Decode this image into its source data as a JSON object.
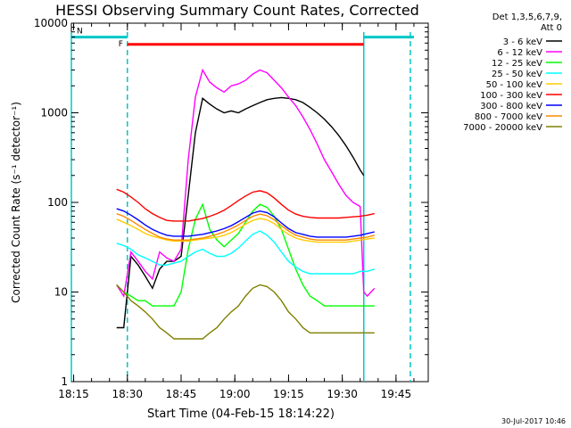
{
  "chart_data": {
    "type": "line",
    "title": "HESSI Observing Summary Count Rates, Corrected",
    "xlabel": "Start Time (04-Feb-15 18:14:22)",
    "ylabel": "Corrected Count Rate (s⁻¹ detector⁻¹)",
    "y_scale": "log",
    "ylim": [
      1,
      10000
    ],
    "xlim": [
      "18:14:22",
      "19:54"
    ],
    "grid": false,
    "legend_placement": "right, outside plot",
    "legend_header": [
      "Det 1,3,5,6,7,9,",
      "Att 0"
    ],
    "x_ticks": [
      "18:15",
      "18:30",
      "18:45",
      "19:00",
      "19:15",
      "19:30",
      "19:45"
    ],
    "y_ticks": [
      "1",
      "10",
      "100",
      "1000",
      "10000"
    ],
    "footer_date": "30-Jul-2017 10:46",
    "flags": [
      {
        "label": "F",
        "color": "#ff0000",
        "value": 5800,
        "start": "18:30",
        "end": "19:36"
      },
      {
        "label": "N",
        "color": "#00c8c8",
        "value": 7000,
        "start": "18:14:22",
        "end": "18:30"
      },
      {
        "label": "",
        "color": "#00c8c8",
        "value": 7000,
        "start": "19:36",
        "end": "19:50"
      }
    ],
    "vertical_markers": [
      {
        "time": "18:30",
        "style": "dashed",
        "color": "#00c8c8"
      },
      {
        "time": "19:36",
        "style": "solid",
        "color": "#00c8c8"
      },
      {
        "time": "19:49",
        "style": "dashed",
        "color": "#00c8c8"
      },
      {
        "time": "18:14:22",
        "style": "solid",
        "color": "#00c8c8"
      }
    ],
    "series": [
      {
        "name": "3 - 6 keV",
        "color": "#000000",
        "x": [
          "18:27",
          "18:29",
          "18:31",
          "18:33",
          "18:35",
          "18:37",
          "18:39",
          "18:41",
          "18:43",
          "18:45",
          "18:47",
          "18:49",
          "18:51",
          "18:53",
          "18:55",
          "18:57",
          "18:59",
          "19:01",
          "19:03",
          "19:05",
          "19:07",
          "19:09",
          "19:11",
          "19:13",
          "19:15",
          "19:17",
          "19:19",
          "19:21",
          "19:23",
          "19:25",
          "19:27",
          "19:29",
          "19:31",
          "19:33",
          "19:35",
          "19:36"
        ],
        "y": [
          4,
          4,
          25,
          20,
          15,
          11,
          18,
          22,
          22,
          25,
          120,
          600,
          1450,
          1250,
          1100,
          1000,
          1050,
          1000,
          1100,
          1200,
          1300,
          1400,
          1450,
          1480,
          1450,
          1400,
          1300,
          1150,
          1000,
          850,
          700,
          560,
          430,
          320,
          230,
          200
        ]
      },
      {
        "name": "6 - 12 keV",
        "color": "#ff00ff",
        "x": [
          "18:27",
          "18:29",
          "18:31",
          "18:33",
          "18:35",
          "18:37",
          "18:39",
          "18:41",
          "18:43",
          "18:45",
          "18:47",
          "18:49",
          "18:51",
          "18:53",
          "18:55",
          "18:57",
          "18:59",
          "19:01",
          "19:03",
          "19:05",
          "19:07",
          "19:09",
          "19:11",
          "19:13",
          "19:15",
          "19:17",
          "19:19",
          "19:21",
          "19:23",
          "19:25",
          "19:27",
          "19:29",
          "19:31",
          "19:33",
          "19:35",
          "19:36",
          "19:37",
          "19:38",
          "19:39"
        ],
        "y": [
          12,
          9,
          28,
          22,
          17,
          14,
          28,
          24,
          22,
          30,
          300,
          1500,
          3000,
          2200,
          1900,
          1700,
          2000,
          2100,
          2300,
          2700,
          3000,
          2800,
          2300,
          1900,
          1500,
          1200,
          900,
          650,
          450,
          300,
          220,
          160,
          120,
          100,
          90,
          10,
          9,
          10,
          11
        ]
      },
      {
        "name": "12 - 25 keV",
        "color": "#00ff00",
        "x": [
          "18:27",
          "18:29",
          "18:31",
          "18:33",
          "18:35",
          "18:37",
          "18:39",
          "18:41",
          "18:43",
          "18:45",
          "18:47",
          "18:49",
          "18:51",
          "18:53",
          "18:55",
          "18:57",
          "18:59",
          "19:01",
          "19:03",
          "19:05",
          "19:07",
          "19:09",
          "19:11",
          "19:13",
          "19:15",
          "19:17",
          "19:19",
          "19:21",
          "19:23",
          "19:25",
          "19:27",
          "19:29",
          "19:31",
          "19:33",
          "19:35",
          "19:37",
          "19:39"
        ],
        "y": [
          12,
          10,
          9,
          8,
          8,
          7,
          7,
          7,
          7,
          10,
          30,
          65,
          95,
          50,
          38,
          32,
          38,
          45,
          60,
          80,
          95,
          88,
          70,
          50,
          30,
          18,
          12,
          9,
          8,
          7,
          7,
          7,
          7,
          7,
          7,
          7,
          7
        ]
      },
      {
        "name": "25 - 50 keV",
        "color": "#00ffff",
        "x": [
          "18:27",
          "18:29",
          "18:31",
          "18:33",
          "18:35",
          "18:37",
          "18:39",
          "18:41",
          "18:43",
          "18:45",
          "18:47",
          "18:49",
          "18:51",
          "18:53",
          "18:55",
          "18:57",
          "18:59",
          "19:01",
          "19:03",
          "19:05",
          "19:07",
          "19:09",
          "19:11",
          "19:13",
          "19:15",
          "19:17",
          "19:19",
          "19:21",
          "19:23",
          "19:25",
          "19:27",
          "19:29",
          "19:31",
          "19:33",
          "19:35",
          "19:37",
          "19:39"
        ],
        "y": [
          35,
          33,
          30,
          26,
          24,
          22,
          20,
          20,
          21,
          22,
          25,
          28,
          30,
          27,
          25,
          25,
          27,
          31,
          37,
          44,
          48,
          43,
          36,
          28,
          22,
          19,
          17,
          16,
          16,
          16,
          16,
          16,
          16,
          16,
          17,
          17,
          18
        ]
      },
      {
        "name": "50 - 100 keV",
        "color": "#ffcc00",
        "x": [
          "18:27",
          "18:29",
          "18:31",
          "18:33",
          "18:35",
          "18:37",
          "18:39",
          "18:41",
          "18:43",
          "18:45",
          "18:47",
          "18:49",
          "18:51",
          "18:53",
          "18:55",
          "18:57",
          "18:59",
          "19:01",
          "19:03",
          "19:05",
          "19:07",
          "19:09",
          "19:11",
          "19:13",
          "19:15",
          "19:17",
          "19:19",
          "19:21",
          "19:23",
          "19:25",
          "19:27",
          "19:29",
          "19:31",
          "19:33",
          "19:35",
          "19:37",
          "19:39"
        ],
        "y": [
          65,
          60,
          55,
          50,
          45,
          42,
          40,
          38,
          37,
          37,
          37,
          38,
          39,
          40,
          41,
          43,
          46,
          51,
          57,
          63,
          66,
          64,
          58,
          50,
          44,
          40,
          38,
          37,
          36,
          36,
          36,
          36,
          36,
          37,
          38,
          39,
          40
        ]
      },
      {
        "name": "100 - 300 keV",
        "color": "#ff0000",
        "x": [
          "18:27",
          "18:29",
          "18:31",
          "18:33",
          "18:35",
          "18:37",
          "18:39",
          "18:41",
          "18:43",
          "18:45",
          "18:47",
          "18:49",
          "18:51",
          "18:53",
          "18:55",
          "18:57",
          "18:59",
          "19:01",
          "19:03",
          "19:05",
          "19:07",
          "19:09",
          "19:11",
          "19:13",
          "19:15",
          "19:17",
          "19:19",
          "19:21",
          "19:23",
          "19:25",
          "19:27",
          "19:29",
          "19:31",
          "19:33",
          "19:35",
          "19:37",
          "19:39"
        ],
        "y": [
          140,
          130,
          115,
          100,
          85,
          75,
          68,
          63,
          62,
          62,
          62,
          64,
          66,
          70,
          75,
          82,
          92,
          105,
          118,
          130,
          135,
          128,
          112,
          95,
          82,
          74,
          70,
          68,
          67,
          67,
          67,
          67,
          68,
          69,
          70,
          72,
          75
        ]
      },
      {
        "name": "300 - 800 keV",
        "color": "#0000ff",
        "x": [
          "18:27",
          "18:29",
          "18:31",
          "18:33",
          "18:35",
          "18:37",
          "18:39",
          "18:41",
          "18:43",
          "18:45",
          "18:47",
          "18:49",
          "18:51",
          "18:53",
          "18:55",
          "18:57",
          "18:59",
          "19:01",
          "19:03",
          "19:05",
          "19:07",
          "19:09",
          "19:11",
          "19:13",
          "19:15",
          "19:17",
          "19:19",
          "19:21",
          "19:23",
          "19:25",
          "19:27",
          "19:29",
          "19:31",
          "19:33",
          "19:35",
          "19:37",
          "19:39"
        ],
        "y": [
          85,
          80,
          72,
          64,
          56,
          50,
          46,
          43,
          42,
          42,
          42,
          43,
          44,
          46,
          48,
          51,
          55,
          61,
          68,
          76,
          80,
          77,
          69,
          59,
          51,
          46,
          44,
          42,
          41,
          41,
          41,
          41,
          41,
          42,
          43,
          45,
          47
        ]
      },
      {
        "name": "800 - 7000 keV",
        "color": "#ff8800",
        "x": [
          "18:27",
          "18:29",
          "18:31",
          "18:33",
          "18:35",
          "18:37",
          "18:39",
          "18:41",
          "18:43",
          "18:45",
          "18:47",
          "18:49",
          "18:51",
          "18:53",
          "18:55",
          "18:57",
          "18:59",
          "19:01",
          "19:03",
          "19:05",
          "19:07",
          "19:09",
          "19:11",
          "19:13",
          "19:15",
          "19:17",
          "19:19",
          "19:21",
          "19:23",
          "19:25",
          "19:27",
          "19:29",
          "19:31",
          "19:33",
          "19:35",
          "19:37",
          "19:39"
        ],
        "y": [
          75,
          70,
          63,
          56,
          50,
          45,
          41,
          39,
          38,
          38,
          38,
          39,
          40,
          42,
          44,
          47,
          51,
          56,
          63,
          70,
          74,
          71,
          64,
          55,
          48,
          43,
          41,
          39,
          38,
          38,
          38,
          38,
          38,
          39,
          40,
          41,
          43
        ]
      },
      {
        "name": "7000 - 20000 keV",
        "color": "#808000",
        "x": [
          "18:27",
          "18:29",
          "18:31",
          "18:33",
          "18:35",
          "18:37",
          "18:39",
          "18:41",
          "18:43",
          "18:45",
          "18:47",
          "18:49",
          "18:51",
          "18:53",
          "18:55",
          "18:57",
          "18:59",
          "19:01",
          "19:03",
          "19:05",
          "19:07",
          "19:09",
          "19:11",
          "19:13",
          "19:15",
          "19:17",
          "19:19",
          "19:21",
          "19:23",
          "19:25",
          "19:27",
          "19:29",
          "19:31",
          "19:33",
          "19:35",
          "19:37",
          "19:39"
        ],
        "y": [
          12,
          10,
          8,
          7,
          6,
          5,
          4,
          3.5,
          3,
          3,
          3,
          3,
          3,
          3.5,
          4,
          5,
          6,
          7,
          9,
          11,
          12,
          11.5,
          10,
          8,
          6,
          5,
          4,
          3.5,
          3.5,
          3.5,
          3.5,
          3.5,
          3.5,
          3.5,
          3.5,
          3.5,
          3.5
        ]
      }
    ]
  }
}
